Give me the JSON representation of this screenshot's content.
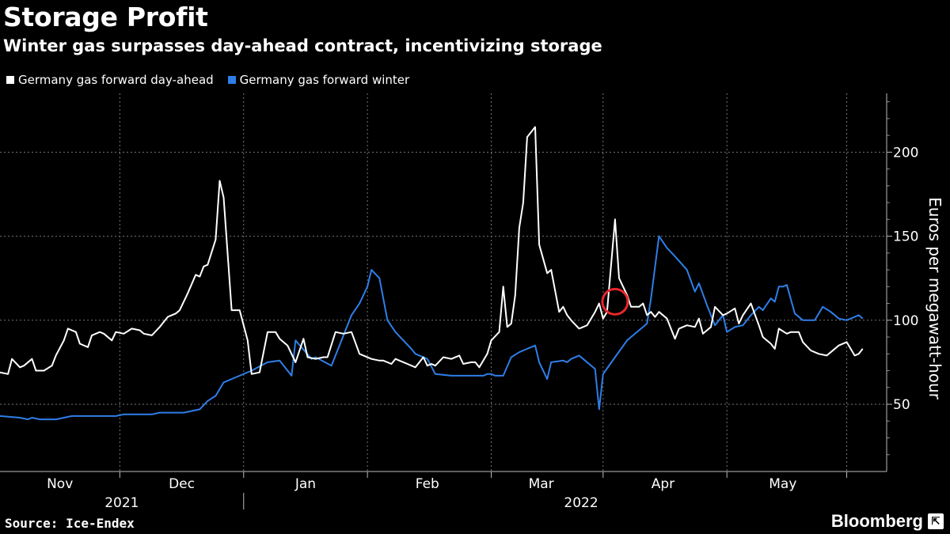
{
  "chart_data": {
    "type": "line",
    "title": "Storage Profit",
    "subtitle": "Winter gas surpasses day-ahead contract, incentivizing storage",
    "ylabel": "Euros per megawatt-hour",
    "xlabel": "",
    "ylim": [
      10,
      235
    ],
    "yticks": [
      50,
      100,
      150,
      200
    ],
    "x_range": [
      0,
      222
    ],
    "month_labels": [
      {
        "label": "Nov",
        "x": 15
      },
      {
        "label": "Dec",
        "x": 45.5
      },
      {
        "label": "Jan",
        "x": 76.5
      },
      {
        "label": "Feb",
        "x": 107
      },
      {
        "label": "Mar",
        "x": 135.5
      },
      {
        "label": "Apr",
        "x": 166
      },
      {
        "label": "May",
        "x": 196
      }
    ],
    "month_dividers": [
      30,
      61,
      92,
      123,
      151,
      182,
      212
    ],
    "year_labels": [
      {
        "label": "2021",
        "x": 30.5
      },
      {
        "label": "2022",
        "x": 145.5
      }
    ],
    "year_divider": 61,
    "annotation": {
      "type": "circle",
      "x": 154,
      "y": 111
    },
    "series": [
      {
        "name": "Germany gas forward day-ahead",
        "color": "#ffffff",
        "x": [
          0,
          2,
          3,
          5,
          6,
          8,
          9,
          11,
          13,
          14,
          16,
          17,
          19,
          20,
          22,
          23,
          25,
          26,
          28,
          29,
          31,
          33,
          35,
          36,
          38,
          40,
          42,
          44,
          45,
          47,
          49,
          50,
          51,
          52,
          54,
          55,
          56,
          58,
          60,
          62,
          63,
          65,
          67,
          69,
          70,
          72,
          74,
          76,
          77,
          79,
          81,
          82,
          84,
          86,
          88,
          90,
          91,
          93,
          95,
          96,
          98,
          99,
          102,
          104,
          106,
          107,
          108,
          109,
          111,
          113,
          115,
          116,
          118,
          119,
          120,
          122,
          123,
          125,
          126,
          127,
          128,
          129,
          130,
          131,
          132,
          134,
          135,
          137,
          138,
          140,
          141,
          142,
          143,
          145,
          147,
          149,
          150,
          151,
          152,
          154,
          155,
          157,
          158,
          160,
          161,
          162,
          163,
          164,
          165,
          167,
          169,
          170,
          172,
          174,
          175,
          176,
          178,
          179,
          181,
          182,
          184,
          185,
          186,
          188,
          190,
          191,
          193,
          194,
          195,
          197,
          198,
          200,
          201,
          203,
          205,
          207,
          208,
          210,
          212,
          214,
          215,
          216
        ],
        "y": [
          69,
          68,
          77,
          72,
          73,
          77,
          70,
          70,
          73,
          79,
          88,
          95,
          93,
          86,
          84,
          91,
          93,
          92,
          88,
          93,
          92,
          95,
          94,
          92,
          91,
          96,
          102,
          104,
          106,
          116,
          127,
          126,
          132,
          133,
          148,
          183,
          173,
          106,
          106,
          88,
          68,
          69,
          93,
          93,
          89,
          85,
          75,
          89,
          78,
          77,
          78,
          78,
          93,
          92,
          93,
          80,
          79,
          77,
          76,
          76,
          74,
          77,
          74,
          72,
          78,
          73,
          74,
          73,
          78,
          77,
          79,
          74,
          75,
          75,
          72,
          80,
          88,
          93,
          120,
          96,
          98,
          115,
          155,
          170,
          209,
          215,
          145,
          128,
          130,
          105,
          108,
          103,
          100,
          95,
          97,
          105,
          110,
          101,
          105,
          160,
          125,
          115,
          108,
          108,
          110,
          103,
          105,
          102,
          105,
          101,
          89,
          95,
          97,
          96,
          101,
          92,
          96,
          108,
          103,
          104,
          107,
          98,
          103,
          110,
          97,
          90,
          86,
          83,
          95,
          92,
          93,
          93,
          87,
          82,
          80,
          79,
          81,
          85,
          87,
          79,
          80,
          83
        ],
        "label_hidden": false
      },
      {
        "name": "Germany gas forward winter",
        "color": "#2f7ee8",
        "x": [
          0,
          5,
          7,
          8,
          10,
          12,
          14,
          16,
          18,
          20,
          24,
          28,
          29,
          31,
          32,
          34,
          36,
          38,
          40,
          42,
          44,
          46,
          48,
          50,
          52,
          54,
          56,
          59,
          63,
          67,
          70,
          73,
          74,
          78,
          79,
          83,
          88,
          90,
          92,
          93,
          95,
          97,
          99,
          101,
          103,
          104,
          107,
          109,
          113,
          116,
          117,
          119,
          120,
          121,
          122,
          123,
          124,
          125,
          126,
          128,
          130,
          131,
          134,
          135,
          137,
          138,
          141,
          142,
          143,
          145,
          146,
          149,
          150,
          151,
          154,
          157,
          158,
          162,
          163,
          165,
          167,
          169,
          172,
          174,
          175,
          177,
          179,
          181,
          182,
          184,
          186,
          188,
          190,
          191,
          193,
          194,
          195,
          196,
          197,
          199,
          201,
          204,
          206,
          208,
          210,
          212,
          215,
          216
        ],
        "y": [
          43,
          42,
          41,
          42,
          41,
          41,
          41,
          42,
          43,
          43,
          43,
          43,
          43,
          44,
          44,
          44,
          44,
          44,
          45,
          45,
          45,
          45,
          46,
          47,
          52,
          55,
          63,
          66,
          70,
          75,
          76,
          67,
          88,
          77,
          78,
          73,
          103,
          110,
          120,
          130,
          125,
          100,
          93,
          88,
          83,
          80,
          77,
          68,
          67,
          67,
          67,
          67,
          67,
          67,
          68,
          68,
          67,
          67,
          67,
          78,
          81,
          82,
          85,
          75,
          65,
          75,
          76,
          75,
          77,
          79,
          77,
          71,
          47,
          68,
          78,
          88,
          90,
          98,
          113,
          150,
          143,
          138,
          130,
          117,
          122,
          109,
          97,
          103,
          93,
          96,
          97,
          103,
          108,
          106,
          113,
          111,
          120,
          120,
          121,
          104,
          100,
          100,
          108,
          105,
          101,
          100,
          103,
          101
        ]
      }
    ]
  },
  "source": "Source: Ice-Endex",
  "brand": "Bloomberg",
  "brand_icon": "bloomberg-terminal-icon"
}
